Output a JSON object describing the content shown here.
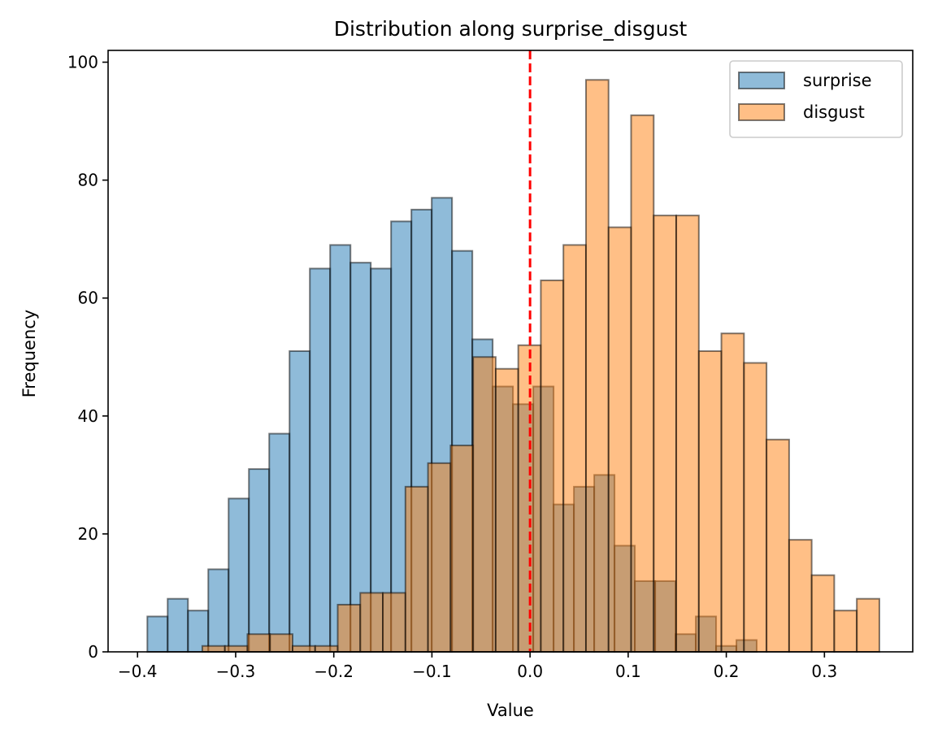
{
  "chart_data": {
    "type": "histogram",
    "title": "Distribution along surprise_disgust",
    "xlabel": "Value",
    "ylabel": "Frequency",
    "xlim": [
      -0.43,
      0.39
    ],
    "ylim": [
      0,
      102
    ],
    "xticks": [
      -0.4,
      -0.3,
      -0.2,
      -0.1,
      0.0,
      0.1,
      0.2,
      0.3
    ],
    "xtick_labels": [
      "−0.4",
      "−0.3",
      "−0.2",
      "−0.1",
      "0.0",
      "0.1",
      "0.2",
      "0.3"
    ],
    "yticks": [
      0,
      20,
      40,
      60,
      80,
      100
    ],
    "ytick_labels": [
      "0",
      "20",
      "40",
      "60",
      "80",
      "100"
    ],
    "legend_position": "top-right",
    "reference_line": {
      "x": 0.0,
      "color": "#ff0000",
      "style": "dashed"
    },
    "series": [
      {
        "name": "surprise",
        "color": "#1f77b4",
        "alpha": 0.5,
        "bin_start": -0.39,
        "bin_width": 0.0207,
        "counts": [
          6,
          9,
          7,
          14,
          26,
          31,
          37,
          51,
          65,
          69,
          66,
          65,
          73,
          75,
          77,
          68,
          53,
          45,
          42,
          45,
          25,
          28,
          30,
          18,
          12,
          12,
          3,
          6,
          1,
          2
        ]
      },
      {
        "name": "disgust",
        "color": "#ff7f0e",
        "alpha": 0.5,
        "bin_start": -0.334,
        "bin_width": 0.023,
        "counts": [
          1,
          1,
          3,
          3,
          1,
          1,
          8,
          10,
          10,
          28,
          32,
          35,
          50,
          48,
          52,
          63,
          69,
          97,
          72,
          91,
          74,
          74,
          51,
          54,
          49,
          36,
          19,
          13,
          7,
          9
        ]
      }
    ]
  }
}
